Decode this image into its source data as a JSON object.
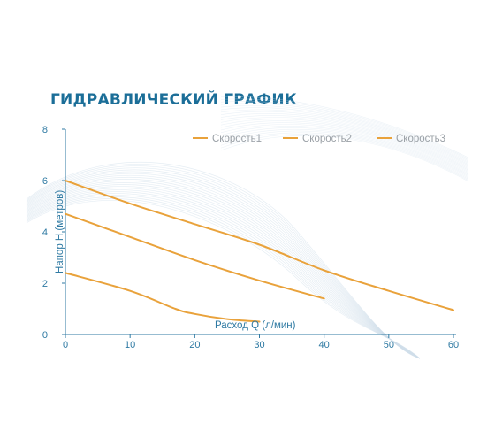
{
  "header": {
    "title": "ГИДРАВЛИЧЕСКИЙ ГРАФИК"
  },
  "colors": {
    "accent": "#1b6e98",
    "series": "#e9a23b",
    "axis": "#2f7aa3",
    "legend_text": "#9aa0a6",
    "watermark": "#cfdeea"
  },
  "chart_data": {
    "type": "line",
    "title": "ГИДРАВЛИЧЕСКИЙ ГРАФИК",
    "xlabel": "Расход Q (л/мин)",
    "ylabel": "Напор H (метров)",
    "xlim": [
      0,
      60
    ],
    "ylim": [
      0,
      8
    ],
    "xticks": [
      0,
      10,
      20,
      30,
      40,
      50,
      60
    ],
    "yticks": [
      0,
      2,
      4,
      6,
      8
    ],
    "grid": false,
    "legend": "top-right",
    "series": [
      {
        "name": "Скорость1",
        "x": [
          0,
          10,
          17,
          20,
          25,
          30
        ],
        "y": [
          2.4,
          1.7,
          1.0,
          0.8,
          0.6,
          0.5
        ]
      },
      {
        "name": "Скорость2",
        "x": [
          0,
          10,
          20,
          30,
          40
        ],
        "y": [
          4.7,
          3.8,
          2.9,
          2.1,
          1.4
        ]
      },
      {
        "name": "Скорость3",
        "x": [
          0,
          10,
          20,
          30,
          40,
          50,
          60
        ],
        "y": [
          6.0,
          5.1,
          4.3,
          3.5,
          2.5,
          1.7,
          0.95
        ]
      }
    ]
  }
}
